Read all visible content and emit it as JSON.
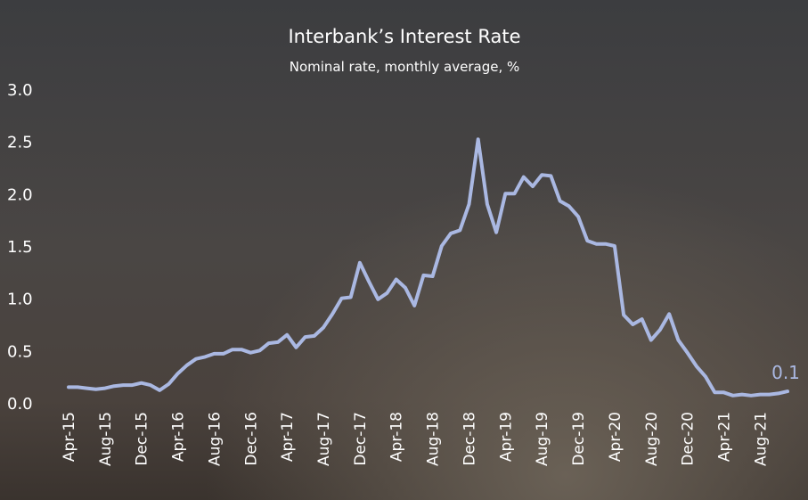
{
  "chart_data": {
    "type": "line",
    "title": "Interbank’s Interest Rate",
    "subtitle": "Nominal rate, monthly average, %",
    "categories": [
      "Apr-15",
      null,
      null,
      null,
      "Aug-15",
      null,
      null,
      null,
      "Dec-15",
      null,
      null,
      null,
      "Apr-16",
      null,
      null,
      null,
      "Aug-16",
      null,
      null,
      null,
      "Dec-16",
      null,
      null,
      null,
      "Apr-17",
      null,
      null,
      null,
      "Aug-17",
      null,
      null,
      null,
      "Dec-17",
      null,
      null,
      null,
      "Apr-18",
      null,
      null,
      null,
      "Aug-18",
      null,
      null,
      null,
      "Dec-18",
      null,
      null,
      null,
      "Apr-19",
      null,
      null,
      null,
      "Aug-19",
      null,
      null,
      null,
      "Dec-19",
      null,
      null,
      null,
      "Apr-20",
      null,
      null,
      null,
      "Aug-20",
      null,
      null,
      null,
      "Dec-20",
      null,
      null,
      null,
      "Apr-21",
      null,
      null,
      null,
      "Aug-21",
      null,
      null,
      null
    ],
    "series": [
      {
        "color": "#aab8e2",
        "values": [
          0.15,
          0.15,
          0.14,
          0.13,
          0.14,
          0.16,
          0.17,
          0.17,
          0.19,
          0.17,
          0.12,
          0.18,
          0.28,
          0.36,
          0.42,
          0.44,
          0.47,
          0.47,
          0.51,
          0.51,
          0.48,
          0.5,
          0.57,
          0.58,
          0.65,
          0.53,
          0.63,
          0.64,
          0.72,
          0.85,
          1.0,
          1.01,
          1.34,
          1.16,
          0.99,
          1.05,
          1.18,
          1.1,
          0.93,
          1.22,
          1.21,
          1.5,
          1.62,
          1.65,
          1.9,
          2.52,
          1.9,
          1.63,
          2.0,
          2.0,
          2.16,
          2.07,
          2.18,
          2.17,
          1.93,
          1.88,
          1.78,
          1.55,
          1.52,
          1.52,
          1.5,
          0.84,
          0.75,
          0.8,
          0.6,
          0.7,
          0.85,
          0.6,
          0.48,
          0.35,
          0.25,
          0.1,
          0.1,
          0.07,
          0.08,
          0.07,
          0.08,
          0.08,
          0.09,
          0.11
        ],
        "value_labels": [
          null,
          null,
          null,
          null,
          null,
          null,
          null,
          null,
          null,
          null,
          null,
          null,
          null,
          null,
          null,
          null,
          null,
          null,
          null,
          null,
          null,
          null,
          null,
          null,
          null,
          null,
          null,
          null,
          null,
          null,
          null,
          null,
          null,
          null,
          null,
          null,
          null,
          null,
          null,
          null,
          null,
          null,
          null,
          null,
          null,
          null,
          null,
          null,
          null,
          null,
          null,
          null,
          null,
          null,
          null,
          null,
          null,
          null,
          null,
          null,
          null,
          null,
          null,
          null,
          null,
          null,
          null,
          null,
          null,
          null,
          null,
          null,
          null,
          null,
          null,
          null,
          null,
          null,
          null,
          "0.1"
        ]
      }
    ],
    "ylim": [
      0,
      3
    ],
    "yticks": [
      {
        "value": 0,
        "label": "0.0"
      },
      0.5,
      {
        "value": 1,
        "label": "1.0"
      },
      1.5,
      {
        "value": 2,
        "label": "2.0"
      },
      2.5,
      {
        "value": 3,
        "label": "3.0"
      }
    ],
    "grid": false
  }
}
